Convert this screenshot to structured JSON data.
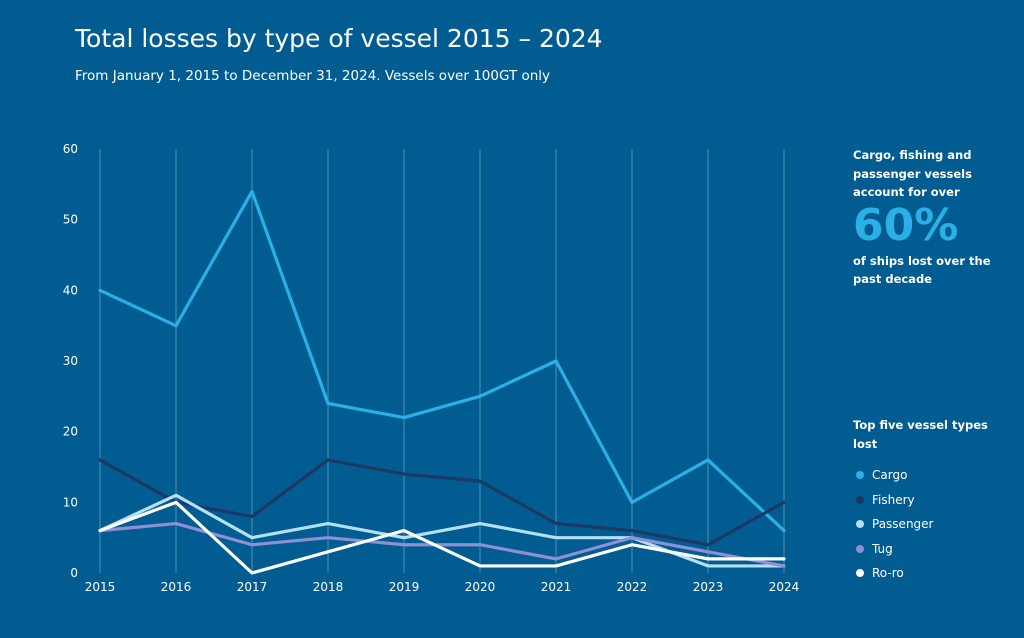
{
  "header": {
    "title": "Total losses by type of vessel 2015 – 2024",
    "subtitle": "From January 1, 2015 to December 31, 2024. Vessels over 100GT only"
  },
  "callout": {
    "text_top": "Cargo, fishing and passenger vessels account for over",
    "big_value": "60%",
    "text_bottom": "of ships lost over the past decade"
  },
  "legend": {
    "title": "Top five vessel types lost"
  },
  "colors": {
    "background": "#015d91",
    "grid": "#8fb8d2"
  },
  "chart_data": {
    "type": "line",
    "title": "Total losses by type of vessel 2015 – 2024",
    "subtitle": "From January 1, 2015 to December 31, 2024. Vessels over 100GT only",
    "x": [
      "2015",
      "2016",
      "2017",
      "2018",
      "2019",
      "2020",
      "2021",
      "2022",
      "2023",
      "2024"
    ],
    "ylim": [
      0,
      60
    ],
    "yticks": [
      0,
      10,
      20,
      30,
      40,
      50,
      60
    ],
    "grid": "vertical",
    "legend_position": "right",
    "series": [
      {
        "name": "Cargo",
        "color": "#2ab0e6",
        "values": [
          40,
          35,
          54,
          24,
          22,
          25,
          30,
          10,
          16,
          6
        ]
      },
      {
        "name": "Fishery",
        "color": "#1c3866",
        "values": [
          16,
          10,
          8,
          16,
          14,
          13,
          7,
          6,
          4,
          10
        ]
      },
      {
        "name": "Passenger",
        "color": "#b5dff2",
        "values": [
          6,
          11,
          5,
          7,
          5,
          7,
          5,
          5,
          1,
          1
        ]
      },
      {
        "name": "Tug",
        "color": "#8f8fd3",
        "values": [
          6,
          7,
          4,
          5,
          4,
          4,
          2,
          5,
          3,
          1
        ]
      },
      {
        "name": "Ro-ro",
        "color": "#ffffff",
        "values": [
          6,
          10,
          0,
          3,
          6,
          1,
          1,
          4,
          2,
          2
        ]
      }
    ]
  }
}
